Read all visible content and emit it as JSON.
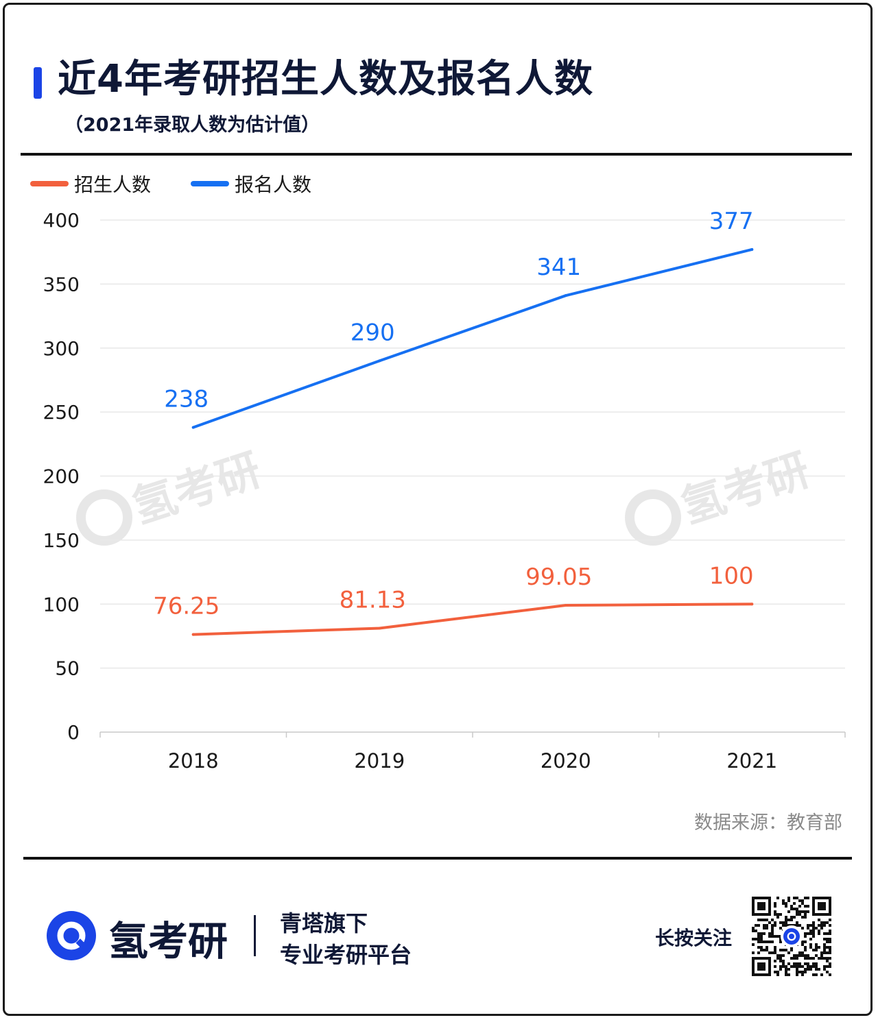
{
  "header": {
    "title": "近4年考研招生人数及报名人数",
    "subtitle": "（2021年录取人数为估计值）"
  },
  "legend": [
    {
      "label": "招生人数",
      "color": "#f2603d"
    },
    {
      "label": "报名人数",
      "color": "#1670f2"
    }
  ],
  "chart_data": {
    "type": "line",
    "title": "近4年考研招生人数及报名人数",
    "subtitle": "（2021年录取人数为估计值）",
    "categories": [
      "2018",
      "2019",
      "2020",
      "2021"
    ],
    "ylim": [
      0,
      400
    ],
    "yticks": [
      "0",
      "50",
      "100",
      "150",
      "200",
      "250",
      "300",
      "350",
      "400"
    ],
    "grid": true,
    "legend_position": "top-left",
    "series": [
      {
        "name": "招生人数",
        "color": "#f2603d",
        "values": [
          76.25,
          81.13,
          99.05,
          100
        ],
        "labels": [
          "76.25",
          "81.13",
          "99.05",
          "100"
        ]
      },
      {
        "name": "报名人数",
        "color": "#1670f2",
        "values": [
          238,
          290,
          341,
          377
        ],
        "labels": [
          "238",
          "290",
          "341",
          "377"
        ]
      }
    ]
  },
  "source": "数据来源：教育部",
  "footer": {
    "brand": "氢考研",
    "tagline_1": "青塔旗下",
    "tagline_2": "专业考研平台",
    "follow": "长按关注"
  },
  "watermark": "氢考研",
  "colors": {
    "accent": "#1b44e6",
    "text_dark": "#0f1836"
  }
}
